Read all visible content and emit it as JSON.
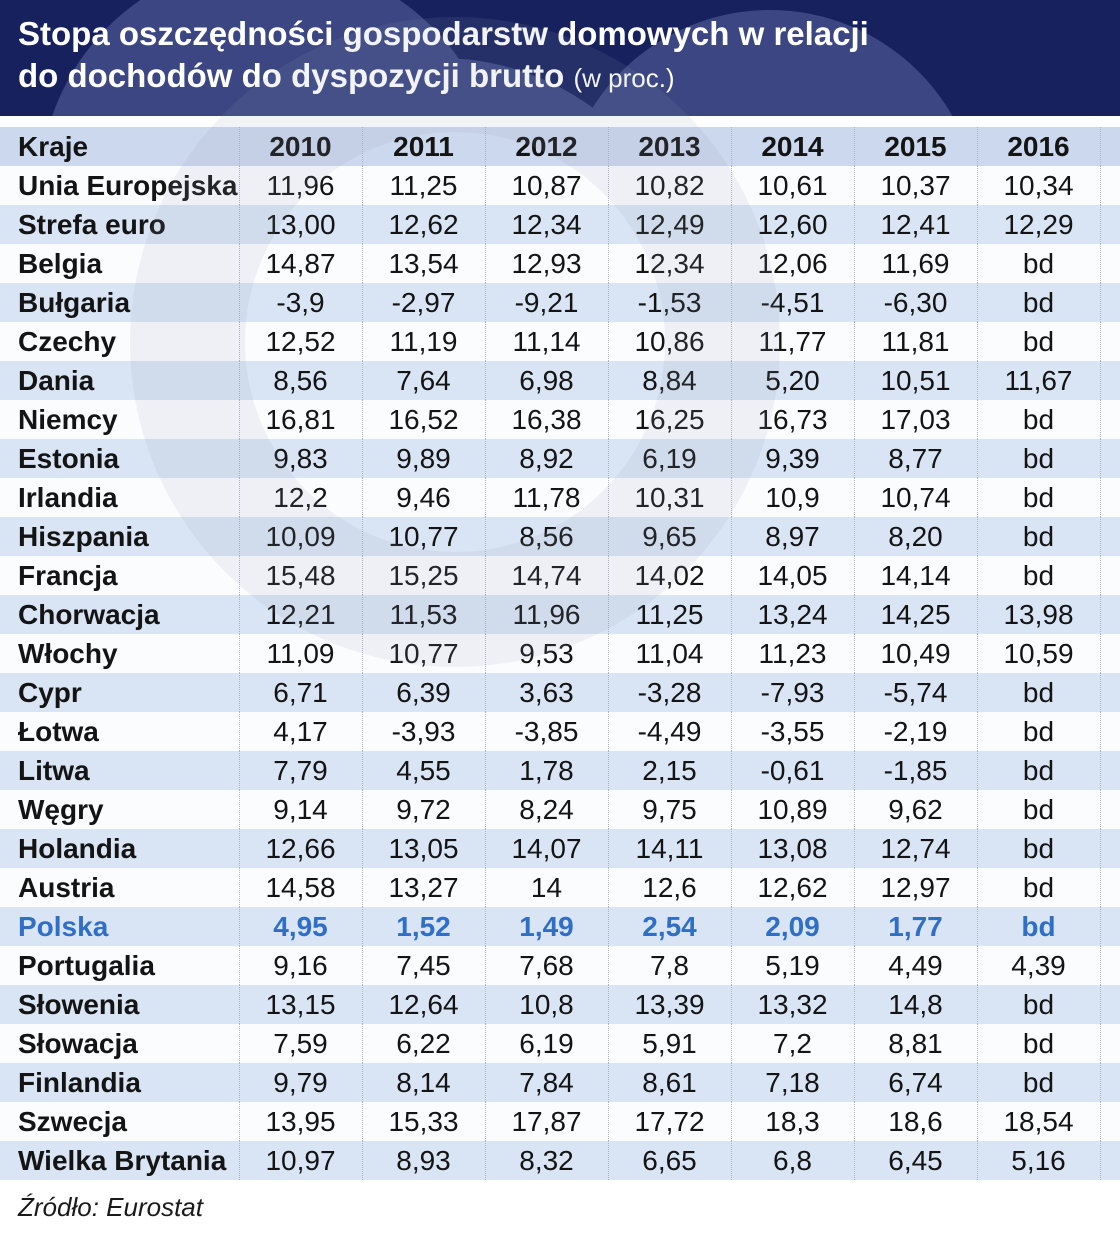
{
  "title": {
    "line1": "Stopa oszczędności gospodarstw domowych w relacji",
    "line2": "do dochodów do dyspozycji brutto",
    "suffix": "(w proc.)"
  },
  "chart_data": {
    "type": "table",
    "columns": [
      "Kraje",
      "2010",
      "2011",
      "2012",
      "2013",
      "2014",
      "2015",
      "2016"
    ],
    "rows": [
      {
        "country": "Unia Europejska",
        "values": [
          "11,96",
          "11,25",
          "10,87",
          "10,82",
          "10,61",
          "10,37",
          "10,34"
        ],
        "highlight": false
      },
      {
        "country": "Strefa euro",
        "values": [
          "13,00",
          "12,62",
          "12,34",
          "12,49",
          "12,60",
          "12,41",
          "12,29"
        ],
        "highlight": false
      },
      {
        "country": "Belgia",
        "values": [
          "14,87",
          "13,54",
          "12,93",
          "12,34",
          "12,06",
          "11,69",
          "bd"
        ],
        "highlight": false
      },
      {
        "country": "Bułgaria",
        "values": [
          "-3,9",
          "-2,97",
          "-9,21",
          "-1,53",
          "-4,51",
          "-6,30",
          "bd"
        ],
        "highlight": false
      },
      {
        "country": "Czechy",
        "values": [
          "12,52",
          "11,19",
          "11,14",
          "10,86",
          "11,77",
          "11,81",
          "bd"
        ],
        "highlight": false
      },
      {
        "country": "Dania",
        "values": [
          "8,56",
          "7,64",
          "6,98",
          "8,84",
          "5,20",
          "10,51",
          "11,67"
        ],
        "highlight": false
      },
      {
        "country": "Niemcy",
        "values": [
          "16,81",
          "16,52",
          "16,38",
          "16,25",
          "16,73",
          "17,03",
          "bd"
        ],
        "highlight": false
      },
      {
        "country": "Estonia",
        "values": [
          "9,83",
          "9,89",
          "8,92",
          "6,19",
          "9,39",
          "8,77",
          "bd"
        ],
        "highlight": false
      },
      {
        "country": "Irlandia",
        "values": [
          "12,2",
          "9,46",
          "11,78",
          "10,31",
          "10,9",
          "10,74",
          "bd"
        ],
        "highlight": false
      },
      {
        "country": "Hiszpania",
        "values": [
          "10,09",
          "10,77",
          "8,56",
          "9,65",
          "8,97",
          "8,20",
          "bd"
        ],
        "highlight": false
      },
      {
        "country": "Francja",
        "values": [
          "15,48",
          "15,25",
          "14,74",
          "14,02",
          "14,05",
          "14,14",
          "bd"
        ],
        "highlight": false
      },
      {
        "country": "Chorwacja",
        "values": [
          "12,21",
          "11,53",
          "11,96",
          "11,25",
          "13,24",
          "14,25",
          "13,98"
        ],
        "highlight": false
      },
      {
        "country": "Włochy",
        "values": [
          "11,09",
          "10,77",
          "9,53",
          "11,04",
          "11,23",
          "10,49",
          "10,59"
        ],
        "highlight": false
      },
      {
        "country": "Cypr",
        "values": [
          "6,71",
          "6,39",
          "3,63",
          "-3,28",
          "-7,93",
          "-5,74",
          "bd"
        ],
        "highlight": false
      },
      {
        "country": "Łotwa",
        "values": [
          "4,17",
          "-3,93",
          "-3,85",
          "-4,49",
          "-3,55",
          "-2,19",
          "bd"
        ],
        "highlight": false
      },
      {
        "country": "Litwa",
        "values": [
          "7,79",
          "4,55",
          "1,78",
          "2,15",
          "-0,61",
          "-1,85",
          "bd"
        ],
        "highlight": false
      },
      {
        "country": "Węgry",
        "values": [
          "9,14",
          "9,72",
          "8,24",
          "9,75",
          "10,89",
          "9,62",
          "bd"
        ],
        "highlight": false
      },
      {
        "country": "Holandia",
        "values": [
          "12,66",
          "13,05",
          "14,07",
          "14,11",
          "13,08",
          "12,74",
          "bd"
        ],
        "highlight": false
      },
      {
        "country": "Austria",
        "values": [
          "14,58",
          "13,27",
          "14",
          "12,6",
          "12,62",
          "12,97",
          "bd"
        ],
        "highlight": false
      },
      {
        "country": "Polska",
        "values": [
          "4,95",
          "1,52",
          "1,49",
          "2,54",
          "2,09",
          "1,77",
          "bd"
        ],
        "highlight": true
      },
      {
        "country": "Portugalia",
        "values": [
          "9,16",
          "7,45",
          "7,68",
          "7,8",
          "5,19",
          "4,49",
          "4,39"
        ],
        "highlight": false
      },
      {
        "country": "Słowenia",
        "values": [
          "13,15",
          "12,64",
          "10,8",
          "13,39",
          "13,32",
          "14,8",
          "bd"
        ],
        "highlight": false
      },
      {
        "country": "Słowacja",
        "values": [
          "7,59",
          "6,22",
          "6,19",
          "5,91",
          "7,2",
          "8,81",
          "bd"
        ],
        "highlight": false
      },
      {
        "country": "Finlandia",
        "values": [
          "9,79",
          "8,14",
          "7,84",
          "8,61",
          "7,18",
          "6,74",
          "bd"
        ],
        "highlight": false
      },
      {
        "country": "Szwecja",
        "values": [
          "13,95",
          "15,33",
          "17,87",
          "17,72",
          "18,3",
          "18,6",
          "18,54"
        ],
        "highlight": false
      },
      {
        "country": "Wielka Brytania",
        "values": [
          "10,97",
          "8,93",
          "8,32",
          "6,65",
          "6,8",
          "6,45",
          "5,16"
        ],
        "highlight": false
      }
    ],
    "highlighted_row": "Polska",
    "source": "Źródło: Eurostat"
  },
  "colors": {
    "banner_bg": "#16215e",
    "banner_circle": "#3b4682",
    "header_row_bg": "#ccd8ee",
    "row_even_bg": "#d9e4f4",
    "row_odd_bg": "#fbfcfe",
    "highlight": "#2f6fc7",
    "text": "#141414",
    "divider": "#a9b4c6",
    "source_text": "#1a1a1a",
    "watermark": "rgba(145,160,185,0.12)"
  }
}
